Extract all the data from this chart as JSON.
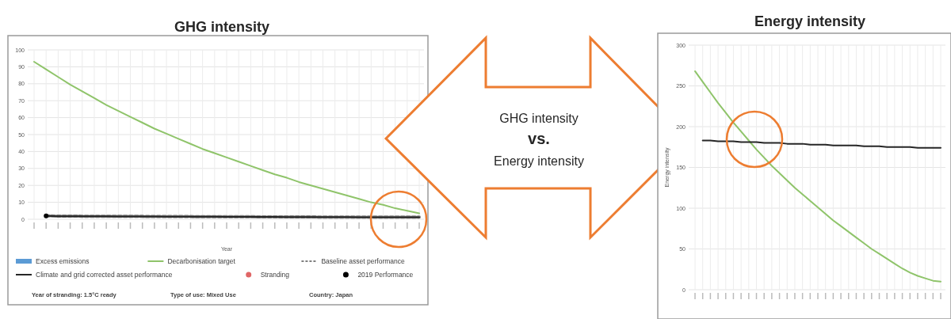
{
  "chart_data": [
    {
      "type": "line",
      "title": "GHG intensity",
      "xlabel": "Year",
      "categories": [
        null,
        null,
        null,
        null,
        null,
        null,
        null,
        null,
        null,
        null,
        null,
        null,
        null,
        null,
        null,
        null,
        null,
        null,
        null,
        null,
        null,
        null,
        null,
        null,
        null,
        null,
        null,
        null,
        null,
        null,
        null,
        null,
        null
      ],
      "ylim": [
        0,
        100
      ],
      "yticks": [
        0,
        10,
        20,
        30,
        40,
        50,
        60,
        70,
        80,
        90,
        100
      ],
      "grid": true,
      "legend": "bottom",
      "series": [
        {
          "name": "Excess emissions",
          "type": "area",
          "color": "#5b9bd5",
          "values": [
            null,
            null,
            null,
            null,
            null,
            null,
            null,
            null,
            null,
            null,
            null,
            null,
            null,
            null,
            null,
            null,
            null,
            null,
            null,
            null,
            null,
            null,
            null,
            null,
            null,
            null,
            null,
            null,
            null,
            null,
            null,
            null,
            null
          ]
        },
        {
          "name": "Decarbonisation target",
          "type": "line",
          "color": "#8fc46a",
          "values": [
            93,
            88.5,
            84,
            79.5,
            75.5,
            71.5,
            67.5,
            64,
            60.5,
            57,
            53.5,
            50.5,
            47.5,
            44.5,
            41.5,
            39,
            36.5,
            34,
            31.5,
            29,
            26.5,
            24.5,
            22,
            20,
            18,
            16,
            14,
            12,
            10,
            8.5,
            6.5,
            5,
            3.5
          ]
        },
        {
          "name": "Baseline asset performance",
          "type": "line",
          "line_style": "dashed",
          "color": "#7f7f7f",
          "values": [
            null,
            2,
            1.9,
            1.9,
            1.8,
            1.8,
            1.8,
            1.7,
            1.7,
            1.7,
            1.6,
            1.6,
            1.6,
            1.6,
            1.5,
            1.5,
            1.5,
            1.5,
            1.5,
            1.4,
            1.4,
            1.4,
            1.4,
            1.4,
            1.3,
            1.3,
            1.3,
            1.3,
            1.3,
            1.3,
            1.3,
            1.3,
            1.3
          ]
        },
        {
          "name": "Climate and grid corrected asset performance",
          "type": "line",
          "color": "#262626",
          "values": [
            null,
            2,
            1.8,
            1.8,
            1.7,
            1.7,
            1.7,
            1.6,
            1.6,
            1.6,
            1.6,
            1.5,
            1.5,
            1.5,
            1.5,
            1.5,
            1.4,
            1.4,
            1.4,
            1.4,
            1.4,
            1.3,
            1.3,
            1.3,
            1.3,
            1.3,
            1.3,
            1.2,
            1.2,
            1.2,
            1.2,
            1.2,
            1.2
          ]
        },
        {
          "name": "Stranding",
          "type": "scatter",
          "marker": "circle",
          "color": "#e06666",
          "values": [
            null,
            null,
            null,
            null,
            null,
            null,
            null,
            null,
            null,
            null,
            null,
            null,
            null,
            null,
            null,
            null,
            null,
            null,
            null,
            null,
            null,
            null,
            null,
            null,
            null,
            null,
            null,
            null,
            null,
            null,
            null,
            null,
            null
          ]
        },
        {
          "name": "2019 Performance",
          "type": "scatter",
          "marker": "circle",
          "color": "#000000",
          "values": [
            null,
            2,
            null,
            null,
            null,
            null,
            null,
            null,
            null,
            null,
            null,
            null,
            null,
            null,
            null,
            null,
            null,
            null,
            null,
            null,
            null,
            null,
            null,
            null,
            null,
            null,
            null,
            null,
            null,
            null,
            null,
            null,
            null
          ]
        }
      ],
      "annotations": [
        "Year of stranding: 1.5°C ready",
        "Type of use: Mixed Use",
        "Country: Japan"
      ]
    },
    {
      "type": "other",
      "annotations": [
        "GHG intensity",
        "vs.",
        "Energy intensity"
      ]
    },
    {
      "type": "line",
      "title": "Energy intensity",
      "ylabel": "Energy intensity",
      "categories": [
        null,
        null,
        null,
        null,
        null,
        null,
        null,
        null,
        null,
        null,
        null,
        null,
        null,
        null,
        null,
        null,
        null,
        null,
        null,
        null,
        null,
        null,
        null,
        null,
        null,
        null,
        null,
        null,
        null,
        null,
        null,
        null,
        null
      ],
      "ylim": [
        0,
        300
      ],
      "yticks": [
        0,
        50,
        100,
        150,
        200,
        250,
        300
      ],
      "grid": true,
      "series": [
        {
          "type": "line",
          "color": "#8fc46a",
          "values": [
            268,
            255,
            242,
            229,
            217,
            205,
            194,
            183,
            172,
            162,
            152,
            143,
            134,
            125,
            117,
            109,
            101,
            93,
            85,
            78,
            71,
            64,
            57,
            50,
            44,
            38,
            32,
            26,
            21,
            17,
            14,
            11,
            10
          ]
        },
        {
          "type": "line",
          "color": "#262626",
          "values": [
            null,
            183,
            183,
            182,
            182,
            182,
            181,
            181,
            181,
            180,
            180,
            180,
            179,
            179,
            179,
            178,
            178,
            178,
            177,
            177,
            177,
            177,
            176,
            176,
            176,
            175,
            175,
            175,
            175,
            174,
            174,
            174,
            174
          ]
        }
      ]
    }
  ]
}
